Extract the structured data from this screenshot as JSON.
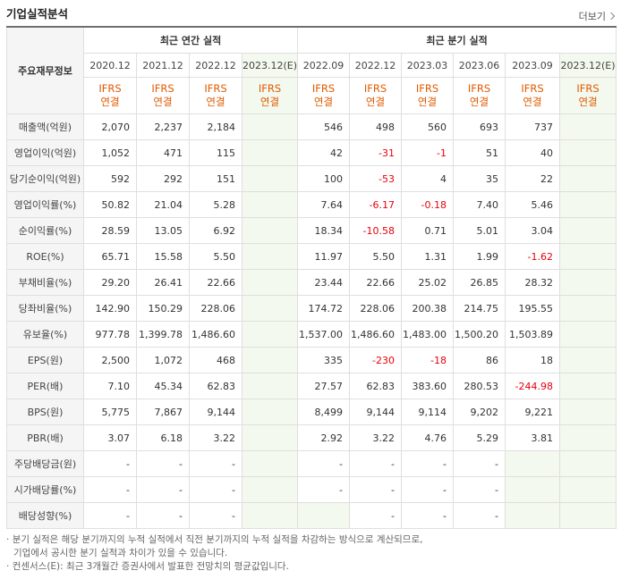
{
  "title": "기업실적분석",
  "more_label": "더보기",
  "header": {
    "corner": "주요재무정보",
    "annual": "최근 연간 실적",
    "quarter": "최근 분기 실적",
    "periods": [
      "2020.12",
      "2021.12",
      "2022.12",
      "2023.12(E)",
      "2022.09",
      "2022.12",
      "2023.03",
      "2023.06",
      "2023.09",
      "2023.12(E)"
    ],
    "ifrs_top": "IFRS",
    "ifrs_bottom": "연결"
  },
  "rows": [
    {
      "label": "매출액(억원)",
      "values": [
        "2,070",
        "2,237",
        "2,184",
        "",
        "546",
        "498",
        "560",
        "693",
        "737",
        ""
      ]
    },
    {
      "label": "영업이익(억원)",
      "values": [
        "1,052",
        "471",
        "115",
        "",
        "42",
        "-31",
        "-1",
        "51",
        "40",
        ""
      ]
    },
    {
      "label": "당기순이익(억원)",
      "values": [
        "592",
        "292",
        "151",
        "",
        "100",
        "-53",
        "4",
        "35",
        "22",
        ""
      ]
    },
    {
      "label": "영업이익률(%)",
      "values": [
        "50.82",
        "21.04",
        "5.28",
        "",
        "7.64",
        "-6.17",
        "-0.18",
        "7.40",
        "5.46",
        ""
      ]
    },
    {
      "label": "순이익률(%)",
      "values": [
        "28.59",
        "13.05",
        "6.92",
        "",
        "18.34",
        "-10.58",
        "0.71",
        "5.01",
        "3.04",
        ""
      ]
    },
    {
      "label": "ROE(%)",
      "values": [
        "65.71",
        "15.58",
        "5.50",
        "",
        "11.97",
        "5.50",
        "1.31",
        "1.99",
        "-1.62",
        ""
      ]
    },
    {
      "label": "부채비율(%)",
      "values": [
        "29.20",
        "26.41",
        "22.66",
        "",
        "23.44",
        "22.66",
        "25.02",
        "26.85",
        "28.32",
        ""
      ]
    },
    {
      "label": "당좌비율(%)",
      "values": [
        "142.90",
        "150.29",
        "228.06",
        "",
        "174.72",
        "228.06",
        "200.38",
        "214.75",
        "195.55",
        ""
      ]
    },
    {
      "label": "유보율(%)",
      "values": [
        "977.78",
        "1,399.78",
        "1,486.60",
        "",
        "1,537.00",
        "1,486.60",
        "1,483.00",
        "1,500.20",
        "1,503.89",
        ""
      ]
    },
    {
      "label": "EPS(원)",
      "values": [
        "2,500",
        "1,072",
        "468",
        "",
        "335",
        "-230",
        "-18",
        "86",
        "18",
        ""
      ]
    },
    {
      "label": "PER(배)",
      "values": [
        "7.10",
        "45.34",
        "62.83",
        "",
        "27.57",
        "62.83",
        "383.60",
        "280.53",
        "-244.98",
        ""
      ]
    },
    {
      "label": "BPS(원)",
      "values": [
        "5,775",
        "7,867",
        "9,144",
        "",
        "8,499",
        "9,144",
        "9,114",
        "9,202",
        "9,221",
        ""
      ]
    },
    {
      "label": "PBR(배)",
      "values": [
        "3.07",
        "6.18",
        "3.22",
        "",
        "2.92",
        "3.22",
        "4.76",
        "5.29",
        "3.81",
        ""
      ]
    },
    {
      "label": "주당배당금(원)",
      "values": [
        "-",
        "-",
        "-",
        "",
        "-",
        "-",
        "-",
        "-",
        "",
        ""
      ]
    },
    {
      "label": "시가배당률(%)",
      "values": [
        "-",
        "-",
        "-",
        "",
        "-",
        "-",
        "-",
        "-",
        "",
        ""
      ]
    },
    {
      "label": "배당성향(%)",
      "values": [
        "-",
        "-",
        "-",
        "",
        "",
        "-",
        "-",
        "-",
        "",
        ""
      ]
    }
  ],
  "notes": [
    "분기 실적은 해당 분기까지의 누적 실적에서 직전 분기까지의 누적 실적을 차감하는 방식으로 계산되므로,",
    "기업에서 공시한 분기 실적과 차이가 있을 수 있습니다.",
    "컨센서스(E): 최근 3개월간 증권사에서 발표한 전망치의 평균값입니다."
  ],
  "colors": {
    "negative": "#e8000b",
    "ifrs": "#e25a00",
    "estimate_bg": "#f3f9ee"
  }
}
